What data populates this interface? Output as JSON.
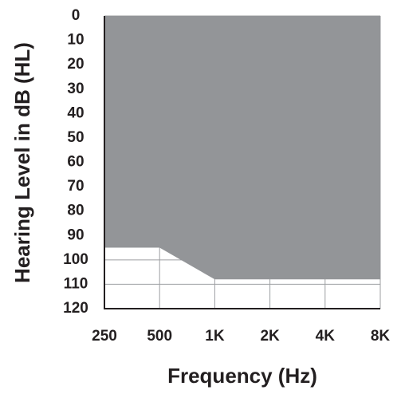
{
  "chart_data": {
    "type": "area",
    "x": [
      250,
      500,
      1000,
      2000,
      4000,
      8000
    ],
    "values": [
      95,
      95,
      108,
      108,
      108,
      108
    ],
    "color": "#939598",
    "xlabel": "Frequency (Hz)",
    "ylabel": "Hearing Level in dB (HL)",
    "xlim": [
      250,
      8000
    ],
    "xlog": true,
    "xticks": [
      250,
      500,
      {
        "value": 1000,
        "label": "1K"
      },
      {
        "value": 2000,
        "label": "2K"
      },
      {
        "value": 4000,
        "label": "4K"
      },
      {
        "value": 8000,
        "label": "8K"
      }
    ],
    "ylim": [
      0,
      120
    ],
    "yinverted": true,
    "yticks": [
      0,
      10,
      20,
      30,
      40,
      50,
      60,
      70,
      80,
      90,
      100,
      110,
      120
    ],
    "grid": true
  }
}
